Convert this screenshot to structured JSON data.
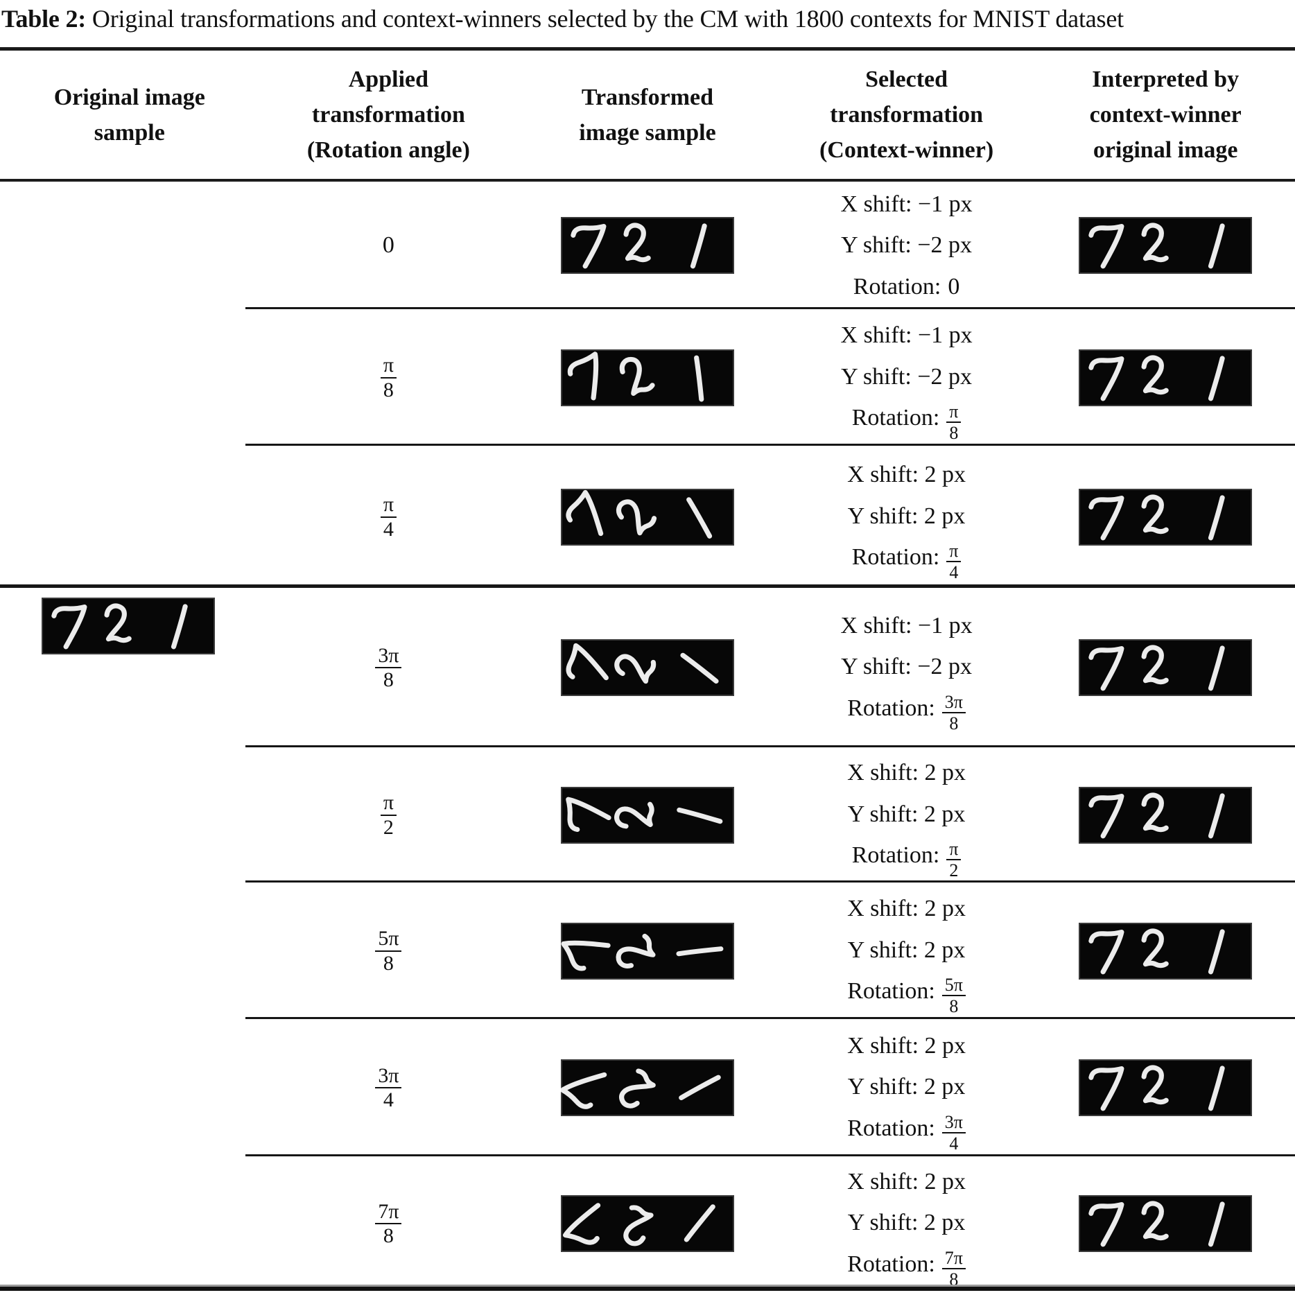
{
  "title": {
    "bold": "Table 2:",
    "rest": " Original transformations and context-winners selected by the CM with 1800 contexts for MNIST dataset"
  },
  "columns": [
    "Original image\nsample",
    "Applied\ntransformation\n(Rotation angle)",
    "Transformed\nimage sample",
    "Selected\ntransformation\n(Context-winner)",
    "Interpreted by\ncontext-winner\noriginal image"
  ],
  "images": {
    "original_digits": "721",
    "transformed_digits": "721",
    "interpreted_digits": "721"
  },
  "rows": [
    {
      "applied": {
        "text": "0"
      },
      "rotation_ccw_deg": 0,
      "selected": {
        "x": "X shift: −1 px",
        "y": "Y shift: −2 px",
        "rotation_label": "Rotation:",
        "rotation": {
          "text": "0"
        }
      }
    },
    {
      "applied": {
        "num": "π",
        "den": "8"
      },
      "rotation_ccw_deg": 22.5,
      "selected": {
        "x": "X shift: −1 px",
        "y": "Y shift: −2 px",
        "rotation_label": "Rotation:",
        "rotation": {
          "num": "π",
          "den": "8"
        }
      }
    },
    {
      "applied": {
        "num": "π",
        "den": "4"
      },
      "rotation_ccw_deg": 45,
      "selected": {
        "x": "X shift: 2 px",
        "y": "Y shift: 2 px",
        "rotation_label": "Rotation:",
        "rotation": {
          "num": "π",
          "den": "4"
        }
      }
    },
    {
      "applied": {
        "num": "3π",
        "den": "8"
      },
      "rotation_ccw_deg": 67.5,
      "selected": {
        "x": "X shift: −1 px",
        "y": "Y shift: −2 px",
        "rotation_label": "Rotation:",
        "rotation": {
          "num": "3π",
          "den": "8"
        }
      }
    },
    {
      "applied": {
        "num": "π",
        "den": "2"
      },
      "rotation_ccw_deg": 90,
      "selected": {
        "x": "X shift: 2 px",
        "y": "Y shift: 2 px",
        "rotation_label": "Rotation:",
        "rotation": {
          "num": "π",
          "den": "2"
        }
      }
    },
    {
      "applied": {
        "num": "5π",
        "den": "8"
      },
      "rotation_ccw_deg": 112.5,
      "selected": {
        "x": "X shift: 2 px",
        "y": "Y shift: 2 px",
        "rotation_label": "Rotation:",
        "rotation": {
          "num": "5π",
          "den": "8"
        }
      }
    },
    {
      "applied": {
        "num": "3π",
        "den": "4"
      },
      "rotation_ccw_deg": 135,
      "selected": {
        "x": "X shift: 2 px",
        "y": "Y shift: 2 px",
        "rotation_label": "Rotation:",
        "rotation": {
          "num": "3π",
          "den": "4"
        }
      }
    },
    {
      "applied": {
        "num": "7π",
        "den": "8"
      },
      "rotation_ccw_deg": 157.5,
      "selected": {
        "x": "X shift: 2 px",
        "y": "Y shift: 2 px",
        "rotation_label": "Rotation:",
        "rotation": {
          "num": "7π",
          "den": "8"
        }
      }
    }
  ]
}
